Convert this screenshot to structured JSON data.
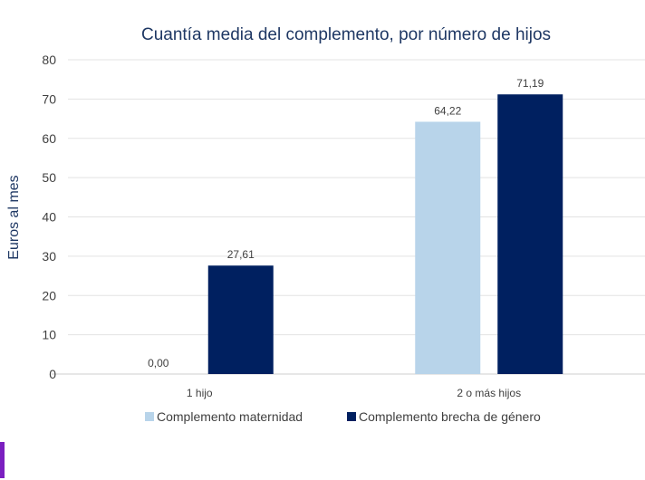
{
  "chart_data": {
    "type": "bar",
    "title": "Cuantía media del complemento, por número de hijos",
    "xlabel": "",
    "ylabel": "Euros al mes",
    "ylim": [
      0,
      80
    ],
    "yticks": [
      0,
      10,
      20,
      30,
      40,
      50,
      60,
      70,
      80
    ],
    "grid": true,
    "legend": "bottom",
    "categories": [
      "1 hijo",
      "2 o más hijos"
    ],
    "series": [
      {
        "name": "Complemento maternidad",
        "color": "#b8d4ea",
        "values": [
          0.0,
          64.22
        ],
        "labels": [
          "0,00",
          "64,22"
        ]
      },
      {
        "name": "Complemento brecha de género",
        "color": "#002060",
        "values": [
          27.61,
          71.19
        ],
        "labels": [
          "27,61",
          "71,19"
        ]
      }
    ]
  },
  "colors": {
    "title": "#1f3864",
    "accent": "#7b1fc0"
  }
}
